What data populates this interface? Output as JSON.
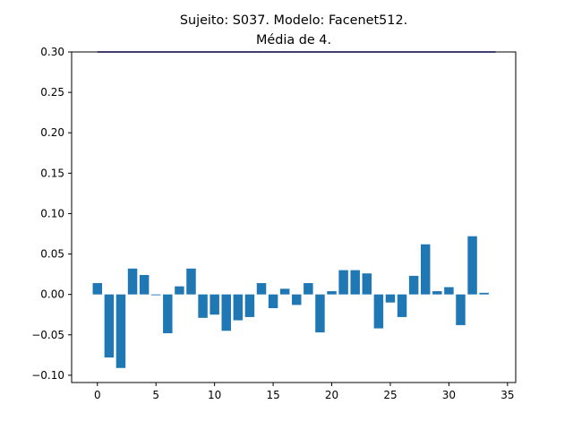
{
  "chart_data": {
    "type": "bar",
    "title_lines": [
      "Sujeito: S037. Modelo: Facenet512.",
      "Média de 4."
    ],
    "xlabel": "",
    "ylabel": "",
    "xlim": [
      -2.2,
      35.7
    ],
    "ylim": [
      -0.109,
      0.3
    ],
    "x_ticks": [
      0,
      5,
      10,
      15,
      20,
      25,
      30,
      35
    ],
    "y_ticks": [
      -0.1,
      -0.05,
      0.0,
      0.05,
      0.1,
      0.15,
      0.2,
      0.25,
      0.3
    ],
    "y_tick_labels": [
      "−0.10",
      "−0.05",
      "0.00",
      "0.05",
      "0.10",
      "0.15",
      "0.20",
      "0.25",
      "0.30"
    ],
    "x": [
      0,
      1,
      2,
      3,
      4,
      5,
      6,
      7,
      8,
      9,
      10,
      11,
      12,
      13,
      14,
      15,
      16,
      17,
      18,
      19,
      20,
      21,
      22,
      23,
      24,
      25,
      26,
      27,
      28,
      29,
      30,
      31,
      32,
      33
    ],
    "values": [
      0.014,
      -0.078,
      -0.091,
      0.032,
      0.024,
      -0.001,
      -0.048,
      0.01,
      0.032,
      -0.029,
      -0.025,
      -0.045,
      -0.032,
      -0.028,
      0.014,
      -0.017,
      0.007,
      -0.013,
      0.014,
      -0.047,
      0.004,
      0.03,
      0.03,
      0.026,
      -0.042,
      -0.01,
      -0.028,
      0.023,
      0.062,
      0.004,
      0.009,
      -0.038,
      0.072,
      0.002
    ],
    "bar_color": "#1f77b4",
    "threshold_line": {
      "y": 0.3,
      "x_from": 0,
      "x_to": 34,
      "color": "#0000cd"
    },
    "grid": false
  }
}
